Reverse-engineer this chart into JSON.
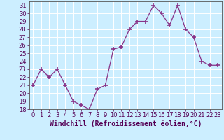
{
  "x": [
    0,
    1,
    2,
    3,
    4,
    5,
    6,
    7,
    8,
    9,
    10,
    11,
    12,
    13,
    14,
    15,
    16,
    17,
    18,
    19,
    20,
    21,
    22,
    23
  ],
  "y": [
    21,
    23,
    22,
    23,
    21,
    19,
    18.5,
    18,
    20.5,
    21,
    25.5,
    25.8,
    28,
    29,
    29,
    31,
    30,
    28.5,
    31,
    28,
    27,
    24,
    23.5,
    23.5
  ],
  "line_color": "#883388",
  "marker": "+",
  "marker_size": 4,
  "background_color": "#cceeff",
  "grid_color": "#aadddd",
  "xlabel": "Windchill (Refroidissement éolien,°C)",
  "ylim": [
    18,
    31.5
  ],
  "yticks": [
    18,
    19,
    20,
    21,
    22,
    23,
    24,
    25,
    26,
    27,
    28,
    29,
    30,
    31
  ],
  "xticks": [
    0,
    1,
    2,
    3,
    4,
    5,
    6,
    7,
    8,
    9,
    10,
    11,
    12,
    13,
    14,
    15,
    16,
    17,
    18,
    19,
    20,
    21,
    22,
    23
  ],
  "tick_fontsize": 6,
  "label_fontsize": 7
}
